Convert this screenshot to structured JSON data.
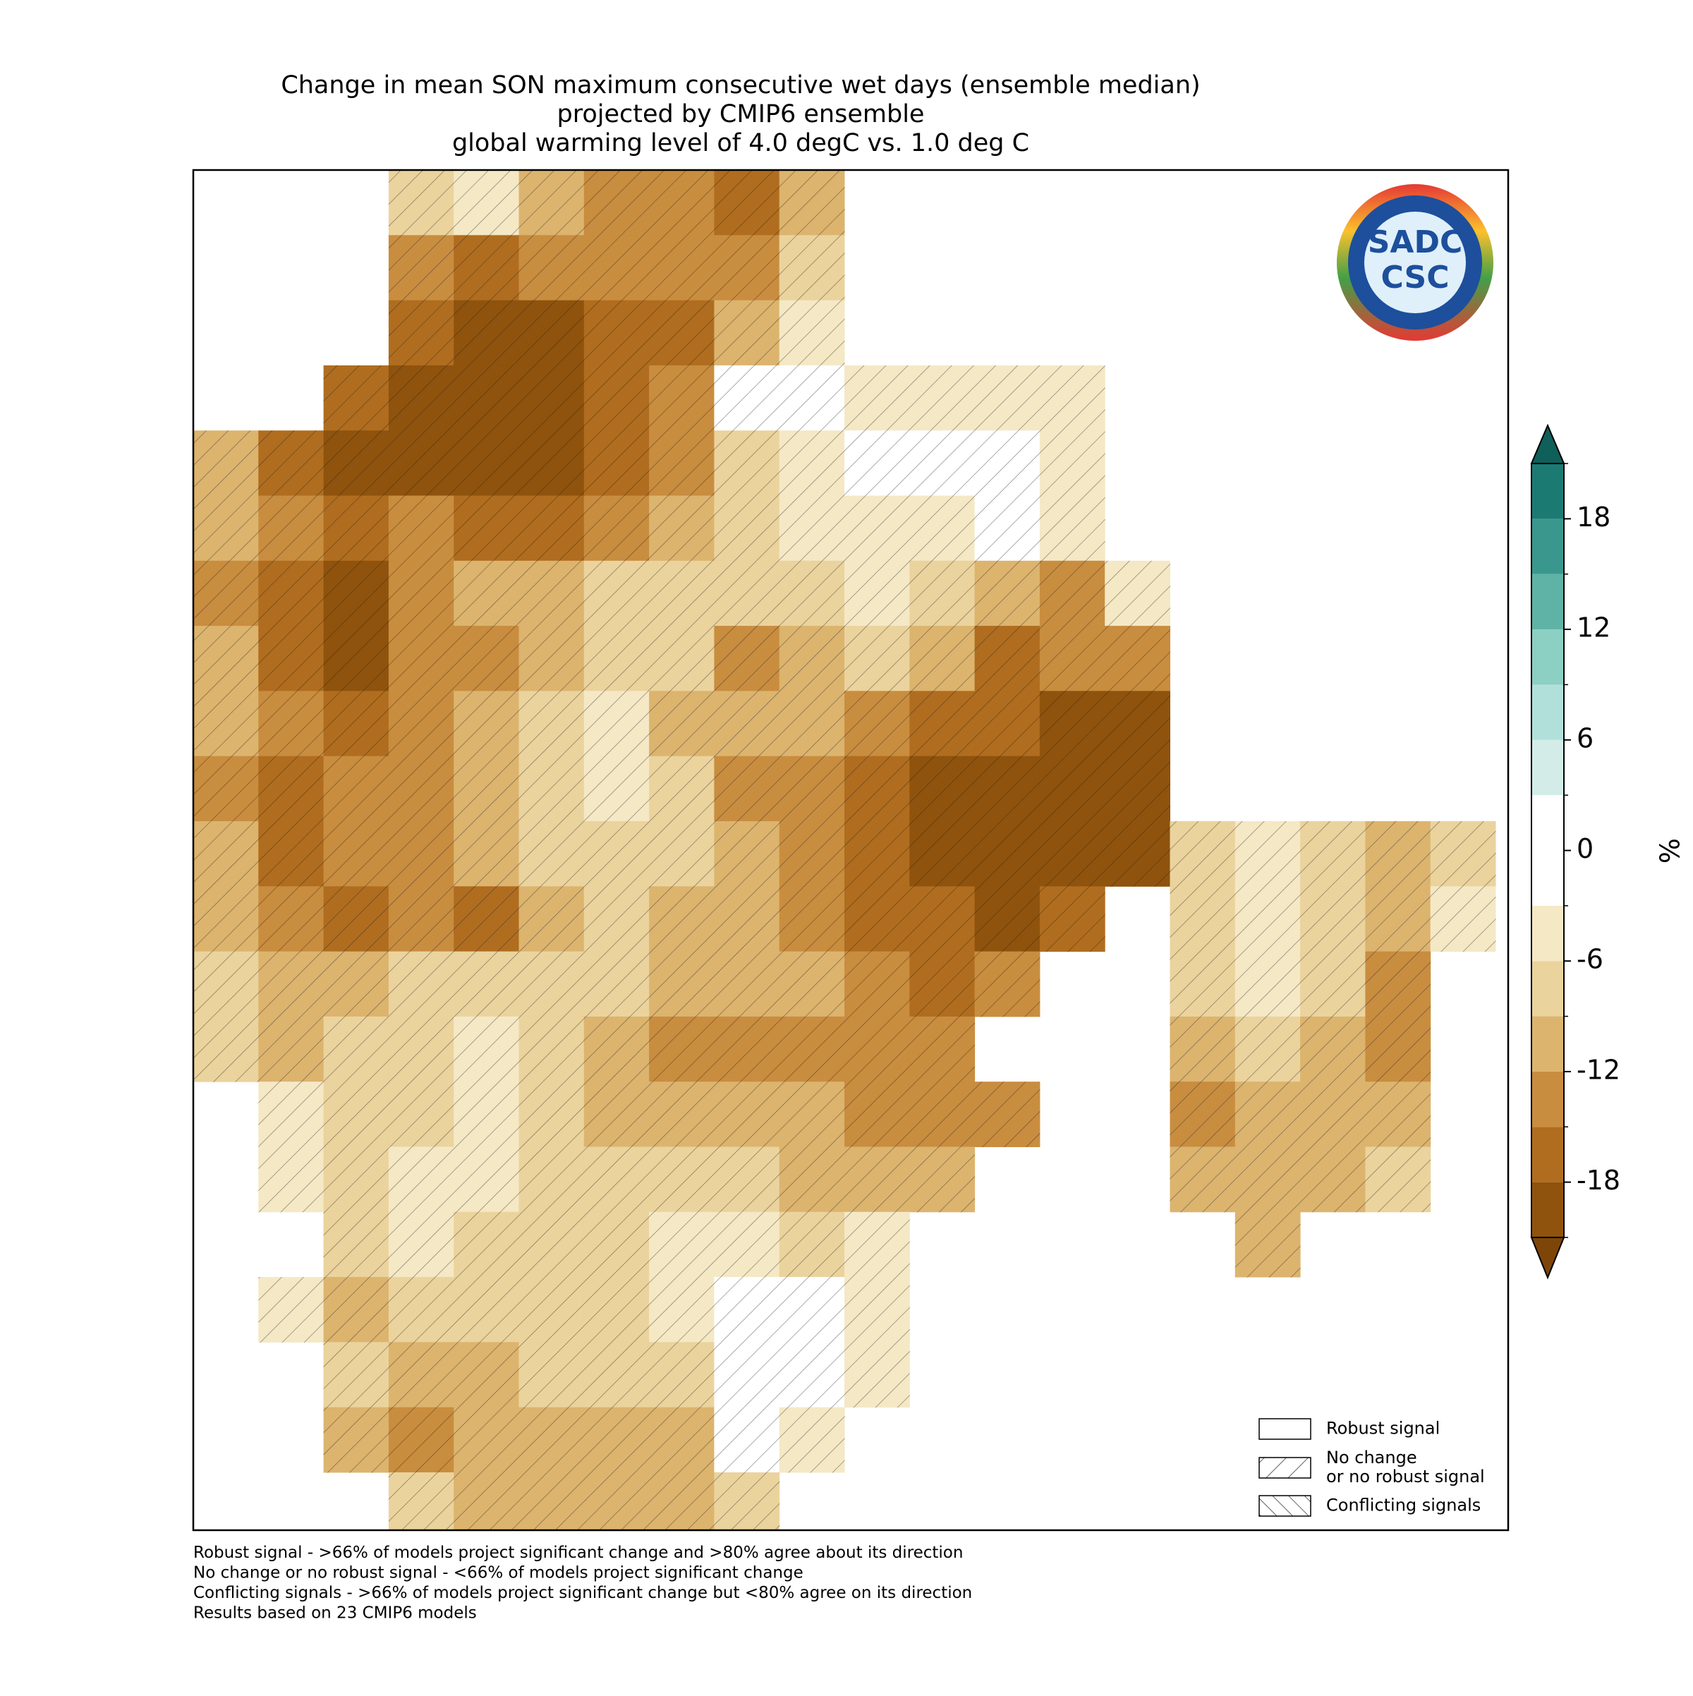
{
  "map": {
    "title": [
      "Change in mean SON maximum consecutive wet days (ensemble median)",
      "projected by CMIP6 ensemble",
      "global warming level of 4.0 degC vs. 1.0 deg C"
    ],
    "grid": [
      [
        null,
        null,
        null,
        -9,
        -6,
        -12,
        -15,
        -15,
        -18,
        -12,
        null,
        null,
        null,
        null,
        null,
        null,
        null,
        null,
        null,
        null
      ],
      [
        null,
        null,
        null,
        -15,
        -18,
        -15,
        -15,
        -15,
        -15,
        -9,
        null,
        null,
        null,
        null,
        null,
        null,
        null,
        null,
        null,
        null
      ],
      [
        null,
        null,
        null,
        -18,
        -21,
        -21,
        -18,
        -18,
        -12,
        -6,
        null,
        null,
        null,
        null,
        null,
        null,
        null,
        null,
        null,
        null
      ],
      [
        null,
        null,
        -18,
        -21,
        -21,
        -21,
        -18,
        -15,
        -3,
        -3,
        -6,
        -6,
        -6,
        -6,
        null,
        null,
        null,
        null,
        null,
        null
      ],
      [
        -12,
        -18,
        -21,
        -21,
        -21,
        -21,
        -18,
        -15,
        -9,
        -6,
        -3,
        -3,
        -3,
        -6,
        null,
        null,
        null,
        null,
        null,
        null
      ],
      [
        -12,
        -15,
        -18,
        -15,
        -18,
        -18,
        -15,
        -12,
        -9,
        -6,
        -6,
        -6,
        -3,
        -6,
        null,
        null,
        null,
        null,
        null,
        null
      ],
      [
        -15,
        -18,
        -21,
        -15,
        -12,
        -12,
        -9,
        -9,
        -9,
        -9,
        -6,
        -9,
        -12,
        -15,
        -6,
        null,
        null,
        null,
        null,
        null
      ],
      [
        -12,
        -18,
        -21,
        -15,
        -15,
        -12,
        -9,
        -9,
        -15,
        -12,
        -9,
        -12,
        -18,
        -15,
        -15,
        null,
        null,
        null,
        null,
        null
      ],
      [
        -12,
        -15,
        -18,
        -15,
        -12,
        -9,
        -6,
        -12,
        -12,
        -12,
        -15,
        -18,
        -18,
        -21,
        -21,
        null,
        null,
        null,
        null,
        null
      ],
      [
        -15,
        -18,
        -15,
        -15,
        -12,
        -9,
        -6,
        -9,
        -15,
        -15,
        -18,
        -21,
        -21,
        -21,
        -21,
        null,
        null,
        null,
        null,
        null
      ],
      [
        -12,
        -18,
        -15,
        -15,
        -12,
        -9,
        -9,
        -9,
        -12,
        -15,
        -18,
        -21,
        -21,
        -21,
        -21,
        -9,
        -6,
        -9,
        -12,
        -9
      ],
      [
        -12,
        -15,
        -18,
        -15,
        -18,
        -12,
        -9,
        -12,
        -12,
        -15,
        -18,
        -18,
        -21,
        -18,
        null,
        -9,
        -6,
        -9,
        -12,
        -6
      ],
      [
        -9,
        -12,
        -12,
        -9,
        -9,
        -9,
        -9,
        -12,
        -12,
        -12,
        -15,
        -18,
        -15,
        null,
        null,
        -9,
        -6,
        -9,
        -15,
        null
      ],
      [
        -9,
        -12,
        -9,
        -9,
        -6,
        -9,
        -12,
        -15,
        -15,
        -15,
        -15,
        -15,
        null,
        null,
        null,
        -12,
        -9,
        -12,
        -15,
        null
      ],
      [
        null,
        -6,
        -9,
        -9,
        -6,
        -9,
        -12,
        -12,
        -12,
        -12,
        -15,
        -15,
        -15,
        null,
        null,
        -15,
        -12,
        -12,
        -12,
        null
      ],
      [
        null,
        -6,
        -9,
        -6,
        -6,
        -9,
        -9,
        -9,
        -9,
        -12,
        -12,
        -12,
        null,
        null,
        null,
        -12,
        -12,
        -12,
        -9,
        null
      ],
      [
        null,
        null,
        -9,
        -6,
        -9,
        -9,
        -9,
        -6,
        -6,
        -9,
        -6,
        null,
        null,
        null,
        null,
        null,
        -12,
        null,
        null,
        null
      ],
      [
        null,
        -6,
        -12,
        -9,
        -9,
        -9,
        -9,
        -6,
        -3,
        -3,
        -6,
        null,
        null,
        null,
        null,
        null,
        null,
        null,
        null,
        null
      ],
      [
        null,
        null,
        -9,
        -12,
        -12,
        -9,
        -9,
        -9,
        -3,
        -3,
        -6,
        null,
        null,
        null,
        null,
        null,
        null,
        null,
        null,
        null
      ],
      [
        null,
        null,
        -12,
        -15,
        -12,
        -12,
        -12,
        -12,
        -3,
        -6,
        null,
        null,
        null,
        null,
        null,
        null,
        null,
        null,
        null,
        null
      ],
      [
        null,
        null,
        null,
        -9,
        -12,
        -12,
        -12,
        -12,
        -9,
        null,
        null,
        null,
        null,
        null,
        null,
        null,
        null,
        null,
        null,
        null
      ]
    ],
    "colorbar": {
      "bounds": [
        -21,
        -18,
        -15,
        -12,
        -9,
        -6,
        -3,
        3,
        6,
        9,
        12,
        15,
        18,
        21
      ],
      "colors": [
        "#8f530d",
        "#b06d1f",
        "#c98d3f",
        "#dcb46e",
        "#ebd39d",
        "#f5e8c5",
        "#ffffff",
        "#d3ece8",
        "#b1e0db",
        "#8ccfc3",
        "#5eb3a6",
        "#3a978e",
        "#1b7b73"
      ],
      "under_color": "#7d4608",
      "over_color": "#0f5f5a",
      "ticks": [
        18,
        12,
        6,
        0,
        -6,
        -12,
        -18
      ],
      "label": "%"
    },
    "legend": [
      [
        "Robust signal"
      ],
      [
        "No change",
        "or no robust signal"
      ],
      [
        "Conflicting signals"
      ]
    ],
    "footnotes": [
      "Robust signal - >66% of models project significant change and >80% agree about its direction",
      "No change or no robust signal - <66% of models project significant change",
      "Conflicting signals - >66% of models project significant change but <80% agree on its direction",
      "Results based on 23 CMIP6 models"
    ],
    "logo": [
      "SADC",
      "CSC"
    ]
  }
}
